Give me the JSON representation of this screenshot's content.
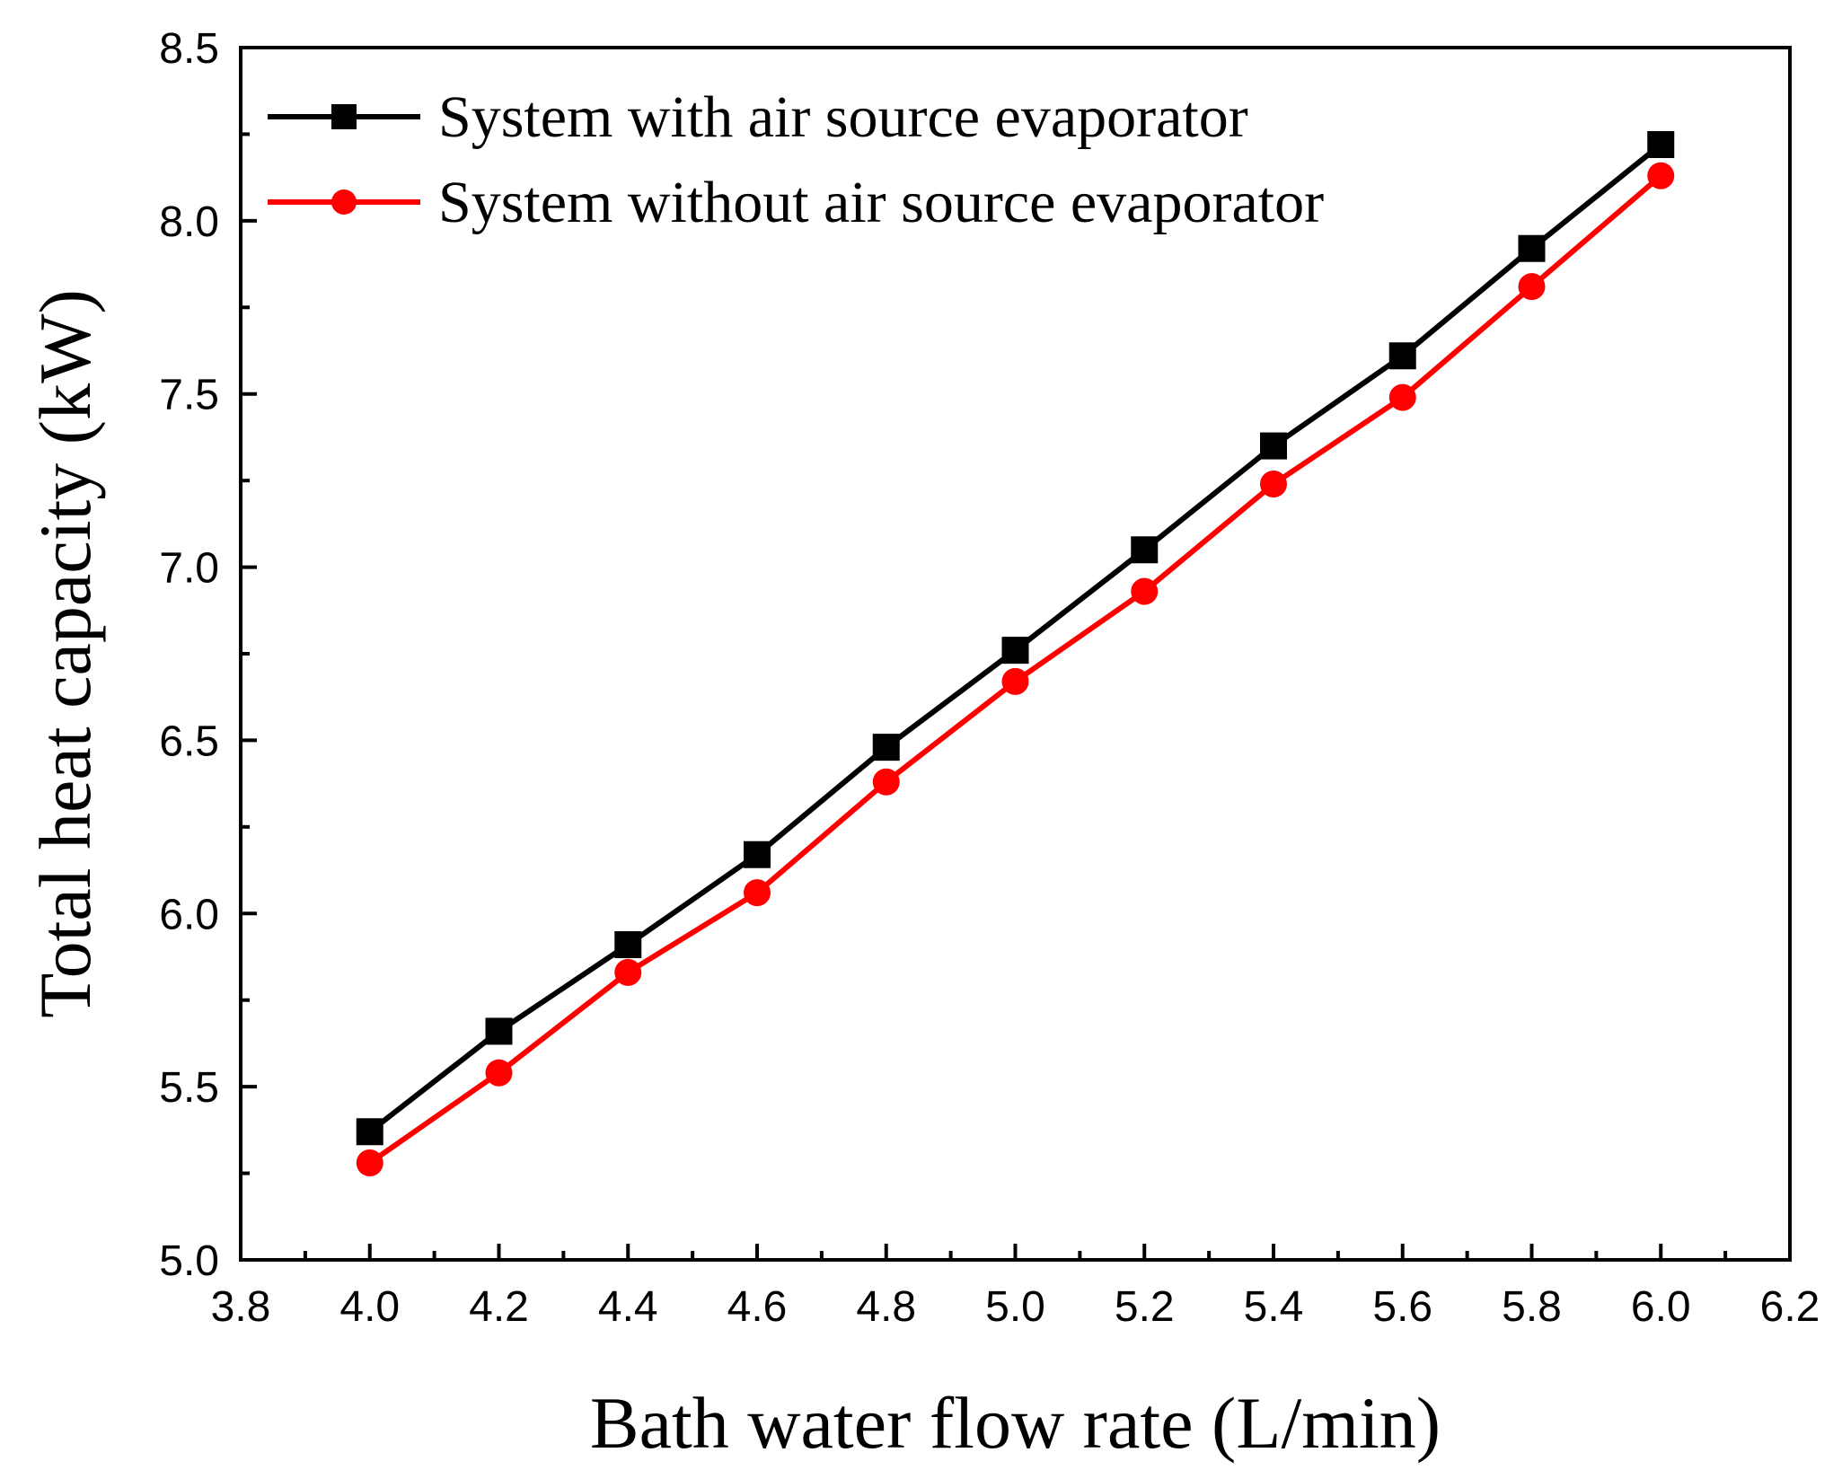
{
  "chart_data": {
    "type": "line",
    "title": "",
    "xlabel": "Bath water flow rate (L/min)",
    "ylabel": "Total heat capacity (kW)",
    "xlim": [
      3.8,
      6.2
    ],
    "ylim": [
      5.0,
      8.5
    ],
    "xticks": [
      "3.8",
      "4.0",
      "4.2",
      "4.4",
      "4.6",
      "4.8",
      "5.0",
      "5.2",
      "5.4",
      "5.6",
      "5.8",
      "6.0",
      "6.2"
    ],
    "yticks": [
      "5.0",
      "5.5",
      "6.0",
      "6.5",
      "7.0",
      "7.5",
      "8.0",
      "8.5"
    ],
    "grid": false,
    "legend_position": "top-left",
    "x": [
      4.0,
      4.2,
      4.4,
      4.6,
      4.8,
      5.0,
      5.2,
      5.4,
      5.6,
      5.8,
      6.0
    ],
    "series": [
      {
        "name": "System with air source evaporator",
        "color": "#000000",
        "marker": "square",
        "values": [
          5.37,
          5.66,
          5.91,
          6.17,
          6.48,
          6.76,
          7.05,
          7.35,
          7.61,
          7.92,
          8.22
        ]
      },
      {
        "name": "System without air source evaporator",
        "color": "#ff0000",
        "marker": "circle",
        "values": [
          5.28,
          5.54,
          5.83,
          6.06,
          6.38,
          6.67,
          6.93,
          7.24,
          7.49,
          7.81,
          8.13
        ]
      }
    ]
  }
}
